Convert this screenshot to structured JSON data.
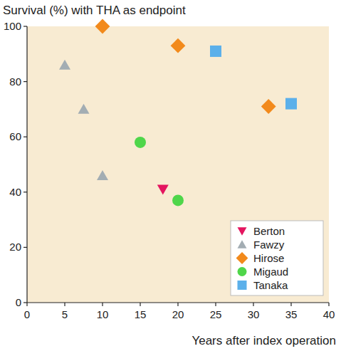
{
  "chart_data": {
    "type": "scatter",
    "title": "Survival (%) with THA as endpoint",
    "x_label": "Years after index operation",
    "xlim": [
      0,
      40
    ],
    "xticks": [
      0,
      5,
      10,
      15,
      20,
      25,
      30,
      35,
      40
    ],
    "ylim": [
      0,
      100
    ],
    "yticks": [
      0,
      20,
      40,
      60,
      80,
      100
    ],
    "legend": "lower right",
    "grid": false,
    "series": [
      {
        "name": "Berton",
        "color": "#e4155f",
        "marker": "triangle-down",
        "x": [
          18
        ],
        "values": [
          41
        ]
      },
      {
        "name": "Fawzy",
        "color": "#a3adb3",
        "marker": "triangle",
        "x": [
          5,
          7.5,
          10
        ],
        "values": [
          86,
          70,
          46
        ]
      },
      {
        "name": "Hirose",
        "color": "#f28a1c",
        "marker": "diamond",
        "x": [
          10,
          20,
          32
        ],
        "values": [
          100,
          93,
          71
        ]
      },
      {
        "name": "Migaud",
        "color": "#4fd64a",
        "marker": "circle",
        "x": [
          15,
          20
        ],
        "values": [
          58,
          37
        ]
      },
      {
        "name": "Tanaka",
        "color": "#5cb0ea",
        "marker": "square",
        "x": [
          25,
          35
        ],
        "values": [
          91,
          72
        ]
      }
    ]
  }
}
